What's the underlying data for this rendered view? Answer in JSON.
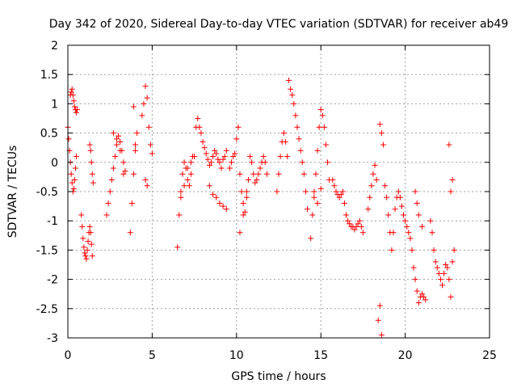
{
  "chart_data": {
    "type": "scatter",
    "title": "Day 342 of 2020, Sidereal Day-to-day VTEC variation (SDTVAR) for receiver ab49",
    "xlabel": "GPS time / hours",
    "ylabel": "SDTVAR / TECUs",
    "xlim": [
      0,
      25
    ],
    "ylim": [
      -3,
      2
    ],
    "xticks": [
      0,
      5,
      10,
      15,
      20,
      25
    ],
    "yticks": [
      -3,
      -2.5,
      -2,
      -1.5,
      -1,
      -0.5,
      0,
      0.5,
      1,
      1.5,
      2
    ],
    "xtick_labels": [
      "0",
      "5",
      "10",
      "15",
      "20",
      "25"
    ],
    "ytick_labels": [
      "-3",
      "-2.5",
      "-2",
      "-1.5",
      "-1",
      "-0.5",
      "0",
      "0.5",
      "1",
      "1.5",
      "2"
    ],
    "grid": true,
    "marker": "+",
    "color": "#ff0000",
    "series": [
      {
        "name": "SDTVAR",
        "x": [
          0.0,
          0.05,
          0.1,
          0.15,
          0.2,
          0.25,
          0.3,
          0.35,
          0.4,
          0.45,
          0.5,
          0.15,
          0.2,
          0.25,
          0.3,
          0.35,
          0.4,
          0.45,
          0.5,
          0.55,
          0.8,
          0.85,
          0.9,
          0.95,
          1.0,
          1.05,
          1.1,
          1.15,
          1.2,
          1.25,
          1.3,
          1.35,
          1.4,
          1.45,
          1.3,
          1.35,
          1.4,
          1.45,
          1.5,
          2.3,
          2.4,
          2.5,
          2.6,
          2.7,
          2.8,
          2.9,
          3.0,
          3.1,
          3.2,
          3.3,
          3.4,
          2.7,
          2.9,
          3.1,
          3.3,
          3.7,
          3.8,
          3.9,
          4.0,
          4.1,
          3.9,
          4.0,
          4.4,
          4.5,
          4.6,
          4.7,
          4.8,
          4.9,
          5.0,
          4.6,
          4.7,
          6.5,
          6.6,
          6.7,
          6.8,
          6.9,
          7.0,
          7.1,
          7.2,
          7.3,
          7.4,
          6.7,
          6.9,
          7.1,
          7.3,
          7.5,
          7.6,
          7.7,
          7.8,
          7.9,
          8.0,
          8.1,
          8.2,
          8.3,
          8.4,
          8.5,
          8.6,
          8.7,
          8.8,
          8.9,
          9.0,
          9.1,
          9.2,
          9.3,
          9.4,
          8.4,
          8.6,
          8.8,
          9.0,
          9.2,
          9.4,
          9.6,
          9.7,
          9.8,
          9.9,
          10.0,
          10.1,
          10.2,
          10.3,
          10.4,
          10.5,
          10.6,
          10.7,
          10.8,
          10.9,
          11.0,
          11.1,
          11.2,
          11.3,
          11.4,
          11.5,
          11.6,
          11.7,
          11.8,
          10.2,
          10.4,
          10.6,
          12.4,
          12.5,
          12.6,
          12.7,
          12.8,
          12.9,
          13.0,
          13.1,
          13.2,
          13.3,
          13.4,
          13.5,
          13.6,
          13.7,
          13.8,
          13.9,
          14.0,
          14.1,
          14.2,
          14.4,
          14.5,
          14.6,
          14.7,
          14.8,
          14.9,
          15.0,
          15.1,
          15.2,
          15.3,
          15.4,
          15.5,
          14.6,
          14.8,
          15.0,
          15.7,
          15.8,
          15.9,
          16.0,
          16.1,
          16.2,
          16.3,
          16.4,
          16.5,
          16.6,
          16.7,
          16.8,
          16.9,
          17.0,
          17.1,
          17.2,
          17.3,
          17.4,
          17.5,
          17.8,
          17.9,
          18.0,
          18.1,
          18.2,
          18.3,
          18.5,
          18.6,
          18.7,
          18.5,
          18.6,
          18.4,
          18.8,
          18.9,
          19.0,
          19.1,
          19.2,
          19.3,
          19.4,
          19.5,
          19.6,
          19.7,
          19.8,
          19.9,
          20.0,
          20.1,
          20.2,
          20.3,
          20.4,
          20.5,
          20.6,
          20.7,
          20.8,
          20.9,
          21.0,
          21.1,
          21.2,
          20.6,
          20.7,
          20.8,
          21.0,
          21.5,
          21.6,
          21.7,
          21.8,
          21.9,
          22.0,
          22.1,
          22.2,
          22.3,
          22.4,
          22.5,
          22.6,
          22.7,
          22.8,
          22.9,
          22.6,
          22.8,
          22.7
        ],
        "y": [
          0.6,
          0.4,
          0.2,
          0.0,
          -0.2,
          -0.35,
          -0.5,
          -0.45,
          -0.3,
          -0.1,
          0.1,
          1.15,
          1.2,
          1.25,
          1.15,
          1.05,
          0.95,
          0.9,
          0.85,
          0.9,
          -0.9,
          -1.1,
          -1.3,
          -1.45,
          -1.55,
          -1.6,
          -1.65,
          -1.5,
          -1.35,
          -1.2,
          -1.1,
          -1.2,
          -1.4,
          -1.6,
          0.3,
          0.2,
          0.0,
          -0.2,
          -0.35,
          -0.9,
          -0.7,
          -0.5,
          -0.3,
          -0.1,
          0.1,
          0.3,
          0.45,
          0.35,
          0.2,
          0.0,
          -0.15,
          0.5,
          0.4,
          0.2,
          -0.2,
          -1.2,
          -0.7,
          -0.2,
          0.2,
          0.5,
          0.95,
          0.3,
          0.8,
          1.0,
          1.3,
          1.1,
          0.6,
          0.3,
          0.15,
          -0.3,
          -0.4,
          -1.45,
          -0.9,
          -0.5,
          -0.2,
          0.0,
          -0.1,
          -0.3,
          -0.4,
          -0.2,
          0.1,
          -0.6,
          -0.4,
          -0.1,
          0.0,
          0.1,
          0.6,
          0.75,
          0.6,
          0.5,
          0.35,
          0.25,
          0.15,
          0.05,
          -0.05,
          0.0,
          0.1,
          0.2,
          0.15,
          0.05,
          0.0,
          -0.1,
          0.05,
          0.1,
          0.2,
          -0.4,
          -0.55,
          -0.6,
          -0.7,
          -0.75,
          -0.8,
          -0.1,
          0.0,
          0.1,
          0.15,
          0.4,
          0.6,
          -0.2,
          -0.5,
          -0.7,
          -0.85,
          -0.6,
          -0.3,
          0.1,
          0.0,
          -0.2,
          -0.35,
          -0.3,
          -0.2,
          -0.1,
          0.0,
          0.1,
          0.0,
          -0.2,
          -1.2,
          -0.9,
          -0.5,
          -0.5,
          -0.2,
          0.1,
          0.35,
          0.5,
          0.35,
          0.1,
          1.4,
          1.25,
          1.15,
          1.0,
          0.8,
          0.6,
          0.4,
          0.2,
          0.0,
          -0.2,
          -0.5,
          -0.8,
          -1.3,
          -0.9,
          -0.5,
          -0.2,
          0.2,
          0.6,
          0.9,
          0.8,
          0.6,
          0.3,
          0.0,
          -0.3,
          -0.6,
          -0.7,
          -0.45,
          -0.3,
          -0.4,
          -0.5,
          -0.55,
          -0.6,
          -0.55,
          -0.5,
          -0.7,
          -0.9,
          -1.0,
          -1.05,
          -1.1,
          -1.1,
          -1.15,
          -1.1,
          -1.05,
          -1.0,
          -1.1,
          -1.2,
          -0.8,
          -0.6,
          -0.4,
          -0.2,
          -0.05,
          -0.3,
          0.65,
          0.5,
          0.3,
          -2.45,
          -2.95,
          -2.7,
          -0.4,
          -0.6,
          -0.9,
          -1.2,
          -1.5,
          -1.2,
          -0.8,
          -0.6,
          -0.5,
          -0.6,
          -0.75,
          -0.9,
          -1.0,
          -1.1,
          -1.2,
          -1.3,
          -1.5,
          -1.8,
          -2.0,
          -2.2,
          -2.4,
          -2.3,
          -2.25,
          -2.3,
          -2.35,
          -0.5,
          -0.7,
          -0.9,
          -1.1,
          -1.0,
          -1.2,
          -1.5,
          -1.7,
          -1.8,
          -1.9,
          -2.0,
          -2.1,
          -1.9,
          -1.75,
          -1.8,
          -2.0,
          -2.3,
          -1.7,
          -1.5,
          0.3,
          -0.3,
          -0.5
        ]
      }
    ]
  }
}
